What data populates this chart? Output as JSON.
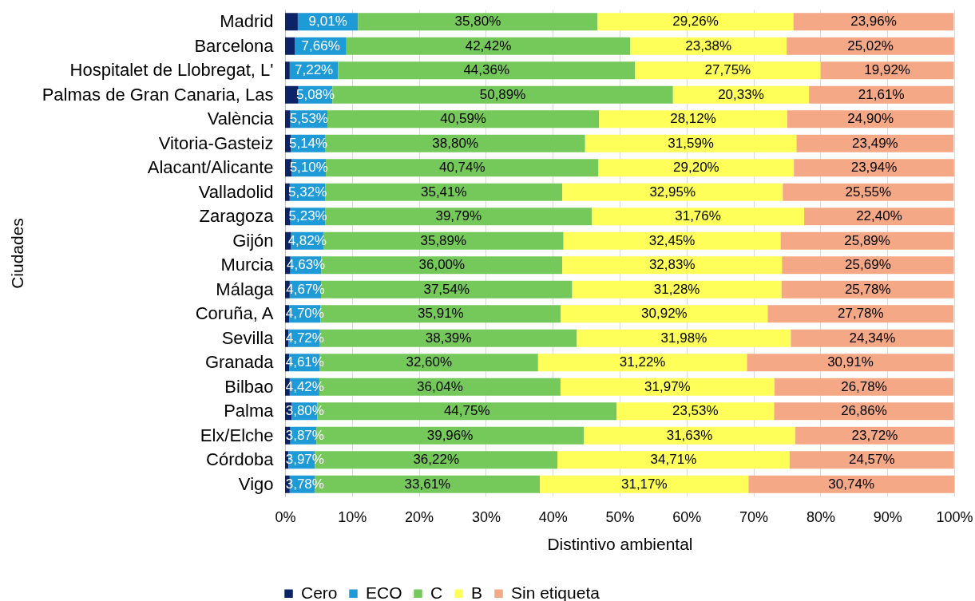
{
  "chart_data": {
    "type": "bar",
    "orientation": "horizontal",
    "stacked": true,
    "xlabel": "Distintivo ambiental",
    "ylabel": "Ciudades",
    "categories": [
      "Madrid",
      "Barcelona",
      "Hospitalet de Llobregat, L'",
      "Palmas de Gran Canaria, Las",
      "València",
      "Vitoria-Gasteiz",
      "Alacant/Alicante",
      "Valladolid",
      "Zaragoza",
      "Gijón",
      "Murcia",
      "Málaga",
      "Coruña, A",
      "Sevilla",
      "Granada",
      "Bilbao",
      "Palma",
      "Elx/Elche",
      "Córdoba",
      "Vigo"
    ],
    "series": [
      {
        "name": "Cero",
        "color": "#0c2466",
        "values": [
          1.9,
          1.5,
          0.7,
          2.0,
          0.8,
          0.9,
          1.0,
          0.7,
          0.8,
          0.9,
          0.8,
          0.7,
          0.6,
          0.5,
          0.6,
          0.7,
          1.0,
          0.8,
          0.5,
          0.7
        ]
      },
      {
        "name": "ECO",
        "color": "#1e9ad6",
        "values": [
          9.01,
          7.66,
          7.22,
          5.08,
          5.53,
          5.14,
          5.1,
          5.32,
          5.23,
          4.82,
          4.63,
          4.67,
          4.7,
          4.72,
          4.61,
          4.42,
          3.8,
          3.87,
          3.97,
          3.78
        ],
        "value_labels": [
          "9,01%",
          "7,66%",
          "7,22%",
          "5,08%",
          "5,53%",
          "5,14%",
          "5,10%",
          "5,32%",
          "5,23%",
          "4,82%",
          "4,63%",
          "4,67%",
          "4,70%",
          "4,72%",
          "4,61%",
          "4,42%",
          "3,80%",
          "3,87%",
          "3,97%",
          "3,78%"
        ]
      },
      {
        "name": "C",
        "color": "#75c95a",
        "values": [
          35.8,
          42.42,
          44.36,
          50.89,
          40.59,
          38.8,
          40.74,
          35.41,
          39.79,
          35.89,
          36.0,
          37.54,
          35.91,
          38.39,
          32.6,
          36.04,
          44.75,
          39.96,
          36.22,
          33.61
        ],
        "value_labels": [
          "35,80%",
          "42,42%",
          "44,36%",
          "50,89%",
          "40,59%",
          "38,80%",
          "40,74%",
          "35,41%",
          "39,79%",
          "35,89%",
          "36,00%",
          "37,54%",
          "35,91%",
          "38,39%",
          "32,60%",
          "36,04%",
          "44,75%",
          "39,96%",
          "36,22%",
          "33,61%"
        ]
      },
      {
        "name": "B",
        "color": "#ffff59",
        "values": [
          29.26,
          23.38,
          27.75,
          20.33,
          28.12,
          31.59,
          29.2,
          32.95,
          31.76,
          32.45,
          32.83,
          31.28,
          30.92,
          31.98,
          31.22,
          31.97,
          23.53,
          31.63,
          34.71,
          31.17
        ],
        "value_labels": [
          "29,26%",
          "23,38%",
          "27,75%",
          "20,33%",
          "28,12%",
          "31,59%",
          "29,20%",
          "32,95%",
          "31,76%",
          "32,45%",
          "32,83%",
          "31,28%",
          "30,92%",
          "31,98%",
          "31,22%",
          "31,97%",
          "23,53%",
          "31,63%",
          "34,71%",
          "31,17%"
        ]
      },
      {
        "name": "Sin etiqueta",
        "color": "#f4a886",
        "values": [
          23.96,
          25.02,
          19.92,
          21.61,
          24.9,
          23.49,
          23.94,
          25.55,
          22.4,
          25.89,
          25.69,
          25.78,
          27.78,
          24.34,
          30.91,
          26.78,
          26.86,
          23.72,
          24.57,
          30.74
        ],
        "value_labels": [
          "23,96%",
          "25,02%",
          "19,92%",
          "21,61%",
          "24,90%",
          "23,49%",
          "23,94%",
          "25,55%",
          "22,40%",
          "25,89%",
          "25,69%",
          "25,78%",
          "27,78%",
          "24,34%",
          "30,91%",
          "26,78%",
          "26,86%",
          "23,72%",
          "24,57%",
          "30,74%"
        ]
      }
    ],
    "xlim": [
      0,
      100
    ],
    "xticks": [
      {
        "value": 0,
        "label": "0%"
      },
      {
        "value": 10,
        "label": "10%"
      },
      {
        "value": 20,
        "label": "20%"
      },
      {
        "value": 30,
        "label": "30%"
      },
      {
        "value": 40,
        "label": "40%"
      },
      {
        "value": 50,
        "label": "50%"
      },
      {
        "value": 60,
        "label": "60%"
      },
      {
        "value": 70,
        "label": "70%"
      },
      {
        "value": 80,
        "label": "80%"
      },
      {
        "value": 90,
        "label": "90%"
      },
      {
        "value": 100,
        "label": "100%"
      }
    ],
    "grid": "x",
    "legend": "bottom"
  }
}
